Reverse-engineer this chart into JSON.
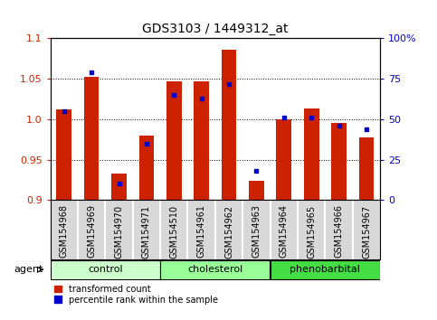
{
  "title": "GDS3103 / 1449312_at",
  "samples": [
    "GSM154968",
    "GSM154969",
    "GSM154970",
    "GSM154971",
    "GSM154510",
    "GSM154961",
    "GSM154962",
    "GSM154963",
    "GSM154964",
    "GSM154965",
    "GSM154966",
    "GSM154967"
  ],
  "transformed_count": [
    1.012,
    1.052,
    0.933,
    0.98,
    1.047,
    1.047,
    1.086,
    0.924,
    1.0,
    1.013,
    0.995,
    0.977
  ],
  "percentile_rank": [
    55,
    79,
    10,
    35,
    65,
    63,
    72,
    18,
    51,
    51,
    46,
    44
  ],
  "groups": [
    {
      "label": "control",
      "color": "#ccffcc",
      "indices": [
        0,
        1,
        2,
        3
      ]
    },
    {
      "label": "cholesterol",
      "color": "#99ff99",
      "indices": [
        4,
        5,
        6,
        7
      ]
    },
    {
      "label": "phenobarbital",
      "color": "#44dd44",
      "indices": [
        8,
        9,
        10,
        11
      ]
    }
  ],
  "ylim_left": [
    0.9,
    1.1
  ],
  "ylim_right": [
    0,
    100
  ],
  "yticks_left": [
    0.9,
    0.95,
    1.0,
    1.05,
    1.1
  ],
  "yticks_right": [
    0,
    25,
    50,
    75,
    100
  ],
  "bar_color_red": "#cc2200",
  "bar_color_blue": "#0000cc",
  "agent_label": "agent",
  "legend_red": "transformed count",
  "legend_blue": "percentile rank within the sample",
  "title_fontsize": 10,
  "tick_label_fontsize": 7,
  "axis_fontsize": 8,
  "group_fontsize": 8,
  "legend_fontsize": 7
}
